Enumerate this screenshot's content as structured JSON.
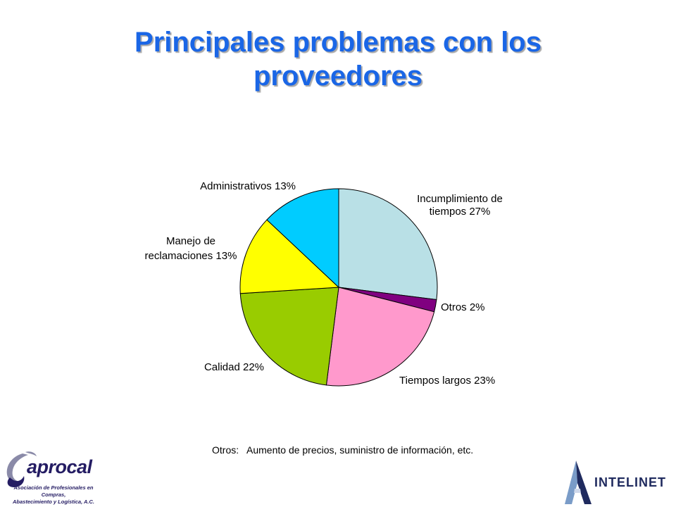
{
  "slide": {
    "title_line1": "Principales problemas con los",
    "title_line2": "proveedores",
    "note": "Otros:   Aumento de precios, suministro de información, etc."
  },
  "chart_data": {
    "type": "pie",
    "title": "Principales problemas con los proveedores",
    "slices": [
      {
        "label": "Incumplimiento de tiempos",
        "value": 27,
        "color": "#b9e0e6"
      },
      {
        "label": "Otros",
        "value": 2,
        "color": "#800080"
      },
      {
        "label": "Tiempos largos",
        "value": 23,
        "color": "#ff99cc"
      },
      {
        "label": "Calidad",
        "value": 22,
        "color": "#99cc00"
      },
      {
        "label": "Manejo de reclamaciones",
        "value": 13,
        "color": "#ffff00"
      },
      {
        "label": "Administrativos",
        "value": 13,
        "color": "#00ccff"
      }
    ],
    "labels": {
      "incumplimiento_1": "Incumplimiento de",
      "incumplimiento_2": "tiempos 27%",
      "otros": "Otros 2%",
      "tiempos_largos": "Tiempos largos 23%",
      "calidad": "Calidad 22%",
      "manejo_1": "Manejo de",
      "manejo_2": "reclamaciones 13%",
      "administrativos": "Administrativos 13%"
    }
  },
  "logos": {
    "left_name": "aprocal",
    "left_sub_1": "Asociación de Profesionales en Compras,",
    "left_sub_2": "Abastecimiento y Logística, A.C.",
    "right_name": "INTELINET",
    "left_icon": "aprocal-swirl-icon",
    "right_icon": "intelinet-a-icon"
  }
}
